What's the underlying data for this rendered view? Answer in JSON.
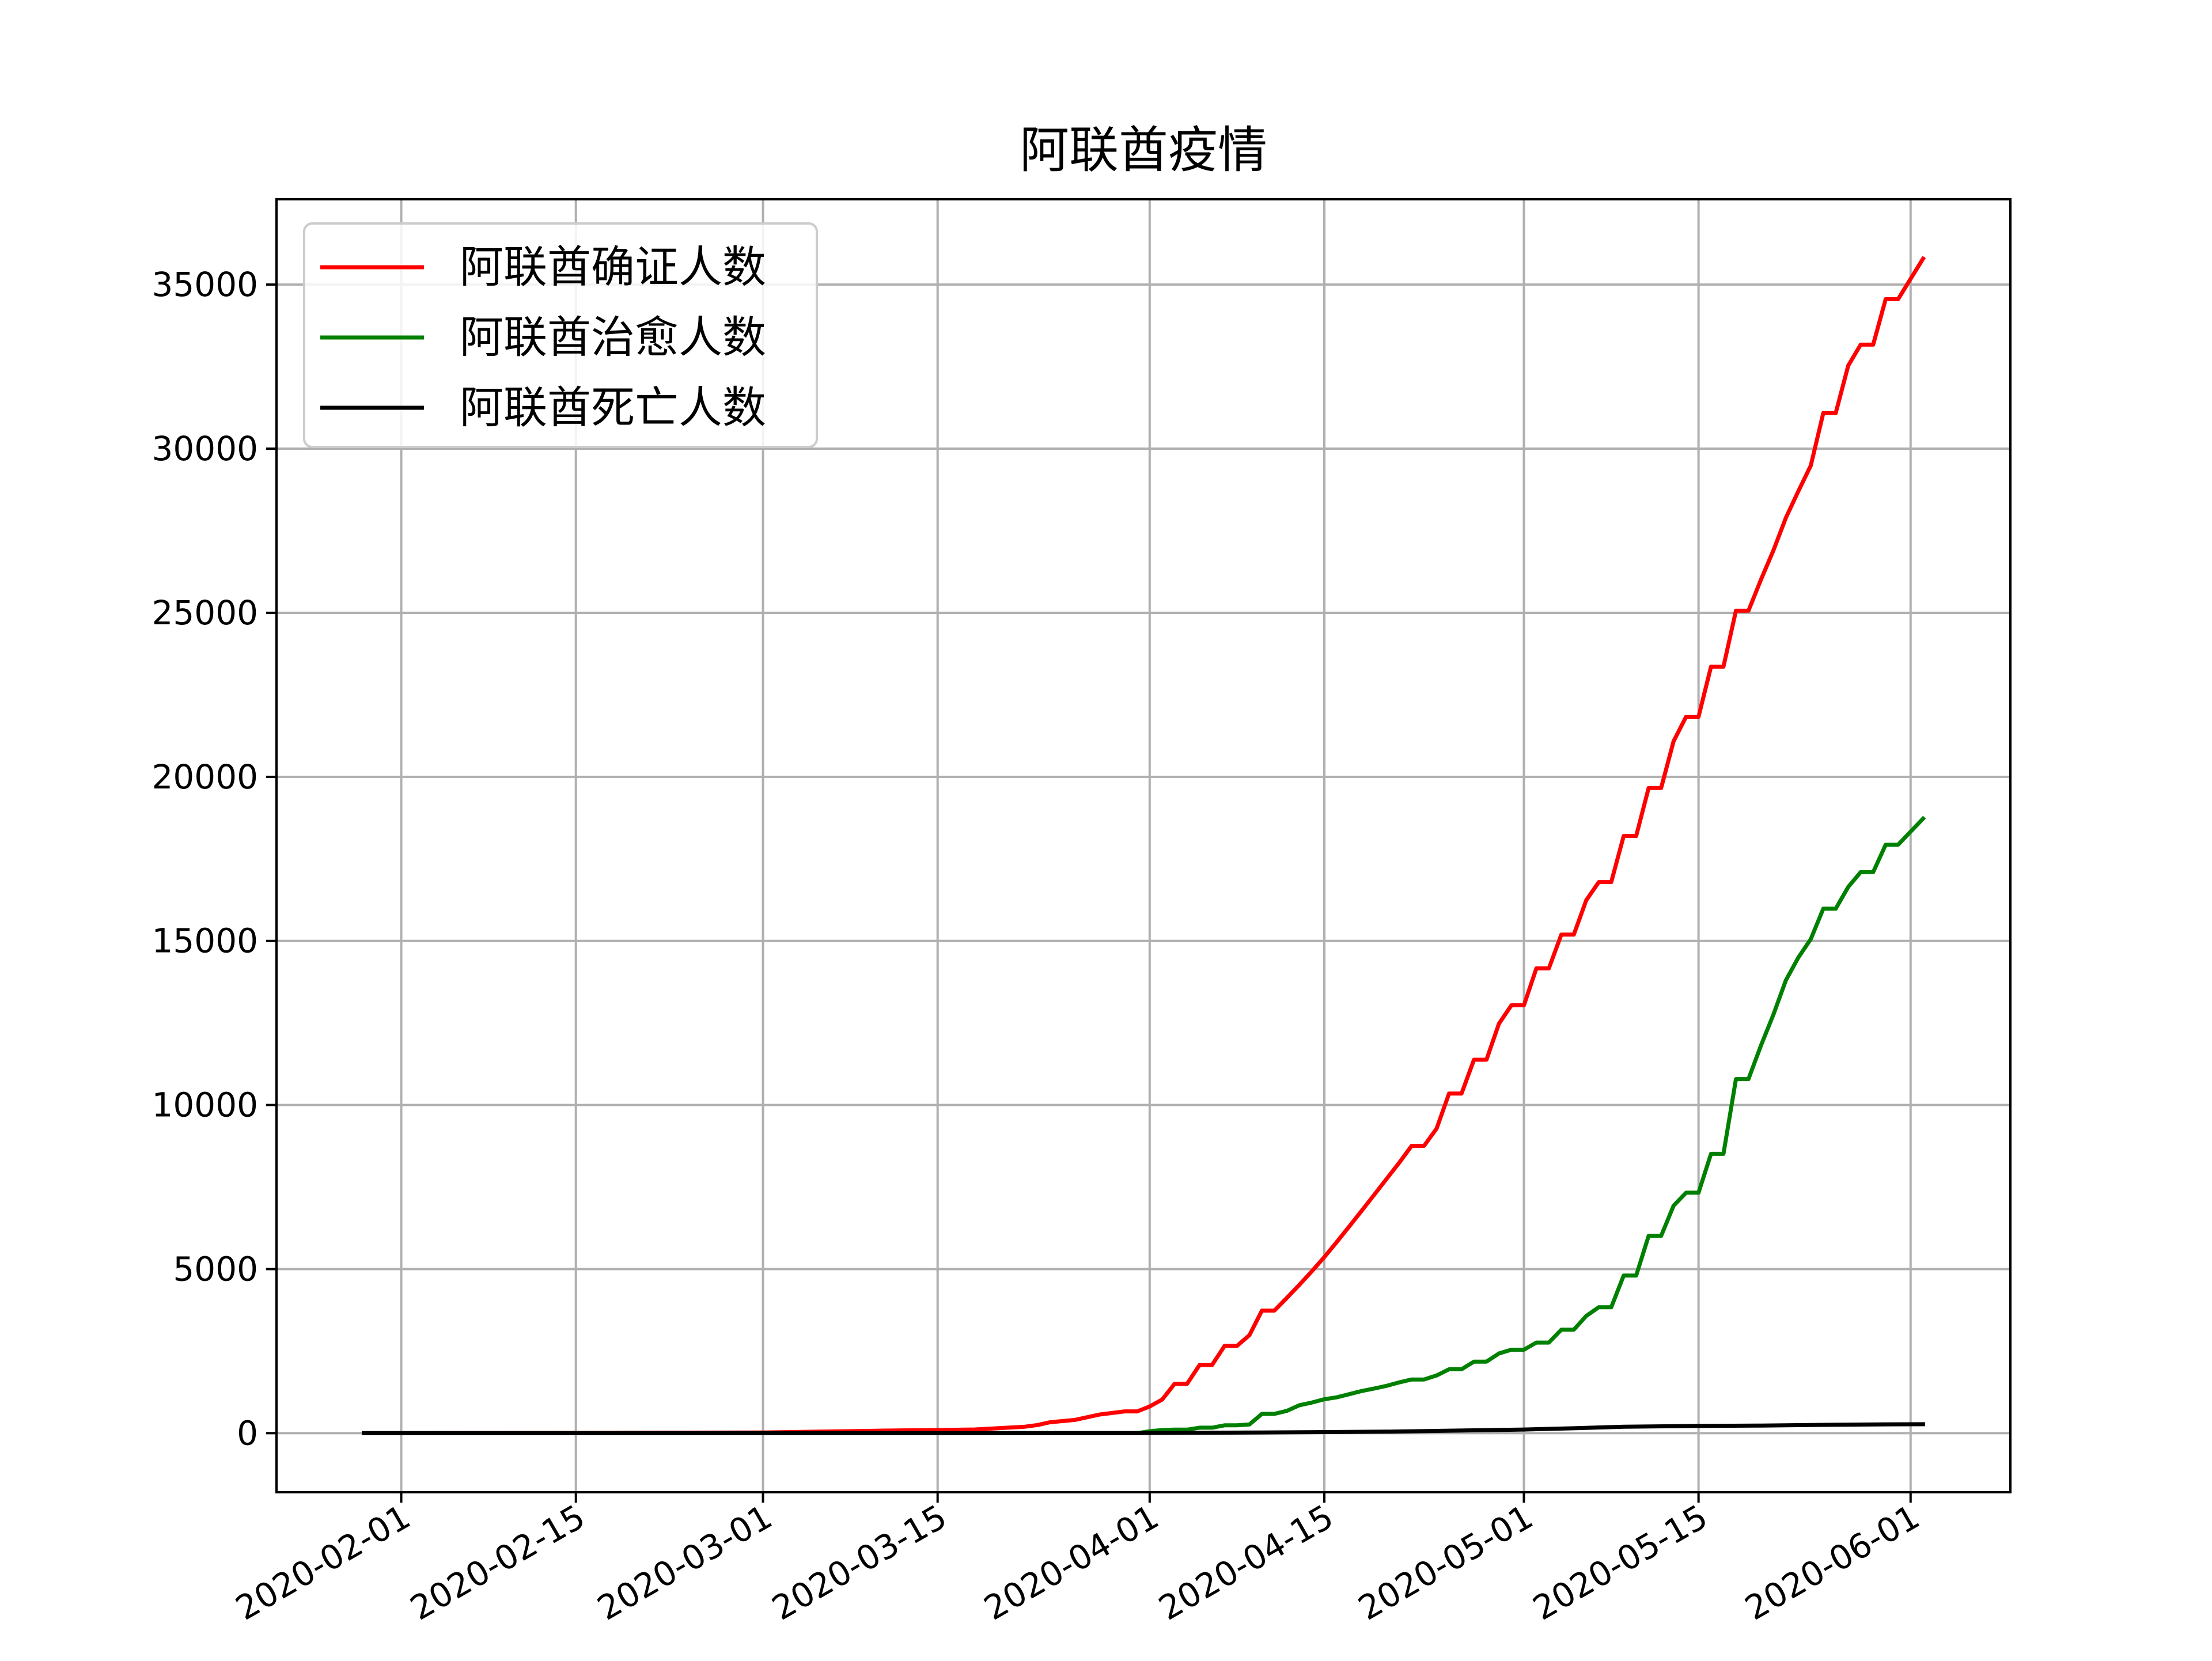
{
  "chart_data": {
    "type": "line",
    "title": "阿联酋疫情",
    "xlabel": "",
    "ylabel": "",
    "x_ticks": [
      "2020-02-01",
      "2020-02-15",
      "2020-03-01",
      "2020-03-15",
      "2020-04-01",
      "2020-04-15",
      "2020-05-01",
      "2020-05-15",
      "2020-06-01"
    ],
    "y_ticks": [
      0,
      5000,
      10000,
      15000,
      20000,
      25000,
      30000,
      35000
    ],
    "xlim": [
      "2020-01-22",
      "2020-06-09"
    ],
    "ylim": [
      -1800,
      37600
    ],
    "grid": true,
    "legend_position": "upper-left",
    "series": [
      {
        "name": "阿联酋确证人数",
        "color": "#ff0000",
        "points": [
          [
            "2020-01-29",
            0
          ],
          [
            "2020-02-15",
            8
          ],
          [
            "2020-03-01",
            21
          ],
          [
            "2020-03-10",
            74
          ],
          [
            "2020-03-15",
            98
          ],
          [
            "2020-03-18",
            113
          ],
          [
            "2020-03-22",
            198
          ],
          [
            "2020-03-23",
            248
          ],
          [
            "2020-03-24",
            333
          ],
          [
            "2020-03-26",
            405
          ],
          [
            "2020-03-28",
            570
          ],
          [
            "2020-03-30",
            664
          ],
          [
            "2020-03-31",
            664
          ],
          [
            "2020-04-01",
            814
          ],
          [
            "2020-04-02",
            1024
          ],
          [
            "2020-04-03",
            1505
          ],
          [
            "2020-04-04",
            1505
          ],
          [
            "2020-04-05",
            2076
          ],
          [
            "2020-04-06",
            2076
          ],
          [
            "2020-04-07",
            2659
          ],
          [
            "2020-04-08",
            2659
          ],
          [
            "2020-04-09",
            2990
          ],
          [
            "2020-04-10",
            3736
          ],
          [
            "2020-04-11",
            3736
          ],
          [
            "2020-04-12",
            4123
          ],
          [
            "2020-04-13",
            4521
          ],
          [
            "2020-04-14",
            4933
          ],
          [
            "2020-04-15",
            5365
          ],
          [
            "2020-04-16",
            5825
          ],
          [
            "2020-04-17",
            6302
          ],
          [
            "2020-04-18",
            6781
          ],
          [
            "2020-04-19",
            7265
          ],
          [
            "2020-04-20",
            7755
          ],
          [
            "2020-04-21",
            8238
          ],
          [
            "2020-04-22",
            8756
          ],
          [
            "2020-04-23",
            8756
          ],
          [
            "2020-04-24",
            9281
          ],
          [
            "2020-04-25",
            10349
          ],
          [
            "2020-04-26",
            10349
          ],
          [
            "2020-04-27",
            11380
          ],
          [
            "2020-04-28",
            11380
          ],
          [
            "2020-04-29",
            12481
          ],
          [
            "2020-04-30",
            13038
          ],
          [
            "2020-05-01",
            13038
          ],
          [
            "2020-05-02",
            14163
          ],
          [
            "2020-05-03",
            14163
          ],
          [
            "2020-05-04",
            15192
          ],
          [
            "2020-05-05",
            15192
          ],
          [
            "2020-05-06",
            16240
          ],
          [
            "2020-05-07",
            16793
          ],
          [
            "2020-05-08",
            16793
          ],
          [
            "2020-05-09",
            18198
          ],
          [
            "2020-05-10",
            18198
          ],
          [
            "2020-05-11",
            19661
          ],
          [
            "2020-05-12",
            19661
          ],
          [
            "2020-05-13",
            21084
          ],
          [
            "2020-05-14",
            21831
          ],
          [
            "2020-05-15",
            21831
          ],
          [
            "2020-05-16",
            23358
          ],
          [
            "2020-05-17",
            23358
          ],
          [
            "2020-05-18",
            25063
          ],
          [
            "2020-05-19",
            25063
          ],
          [
            "2020-05-20",
            26004
          ],
          [
            "2020-05-21",
            26898
          ],
          [
            "2020-05-22",
            27892
          ],
          [
            "2020-05-23",
            28704
          ],
          [
            "2020-05-24",
            29485
          ],
          [
            "2020-05-25",
            31086
          ],
          [
            "2020-05-26",
            31086
          ],
          [
            "2020-05-27",
            32532
          ],
          [
            "2020-05-28",
            33170
          ],
          [
            "2020-05-29",
            33170
          ],
          [
            "2020-05-30",
            34557
          ],
          [
            "2020-05-31",
            34557
          ],
          [
            "2020-06-02",
            35788
          ]
        ]
      },
      {
        "name": "阿联酋治愈人数",
        "color": "#008000",
        "points": [
          [
            "2020-01-29",
            0
          ],
          [
            "2020-03-31",
            0
          ],
          [
            "2020-04-01",
            58
          ],
          [
            "2020-04-02",
            96
          ],
          [
            "2020-04-03",
            108
          ],
          [
            "2020-04-04",
            108
          ],
          [
            "2020-04-05",
            167
          ],
          [
            "2020-04-06",
            167
          ],
          [
            "2020-04-07",
            239
          ],
          [
            "2020-04-08",
            239
          ],
          [
            "2020-04-09",
            268
          ],
          [
            "2020-04-10",
            588
          ],
          [
            "2020-04-11",
            588
          ],
          [
            "2020-04-12",
            680
          ],
          [
            "2020-04-13",
            852
          ],
          [
            "2020-04-14",
            933
          ],
          [
            "2020-04-15",
            1034
          ],
          [
            "2020-04-16",
            1093
          ],
          [
            "2020-04-17",
            1188
          ],
          [
            "2020-04-18",
            1286
          ],
          [
            "2020-04-19",
            1360
          ],
          [
            "2020-04-20",
            1443
          ],
          [
            "2020-04-21",
            1546
          ],
          [
            "2020-04-22",
            1637
          ],
          [
            "2020-04-23",
            1637
          ],
          [
            "2020-04-24",
            1760
          ],
          [
            "2020-04-25",
            1947
          ],
          [
            "2020-04-26",
            1947
          ],
          [
            "2020-04-27",
            2181
          ],
          [
            "2020-04-28",
            2181
          ],
          [
            "2020-04-29",
            2429
          ],
          [
            "2020-04-30",
            2543
          ],
          [
            "2020-05-01",
            2543
          ],
          [
            "2020-05-02",
            2762
          ],
          [
            "2020-05-03",
            2762
          ],
          [
            "2020-05-04",
            3153
          ],
          [
            "2020-05-05",
            3153
          ],
          [
            "2020-05-06",
            3572
          ],
          [
            "2020-05-07",
            3837
          ],
          [
            "2020-05-08",
            3837
          ],
          [
            "2020-05-09",
            4804
          ],
          [
            "2020-05-10",
            4804
          ],
          [
            "2020-05-11",
            6012
          ],
          [
            "2020-05-12",
            6012
          ],
          [
            "2020-05-13",
            6931
          ],
          [
            "2020-05-14",
            7328
          ],
          [
            "2020-05-15",
            7328
          ],
          [
            "2020-05-16",
            8512
          ],
          [
            "2020-05-17",
            8512
          ],
          [
            "2020-05-18",
            10791
          ],
          [
            "2020-05-19",
            10791
          ],
          [
            "2020-05-20",
            11809
          ],
          [
            "2020-05-21",
            12755
          ],
          [
            "2020-05-22",
            13798
          ],
          [
            "2020-05-23",
            14495
          ],
          [
            "2020-05-24",
            15056
          ],
          [
            "2020-05-25",
            15982
          ],
          [
            "2020-05-26",
            15982
          ],
          [
            "2020-05-27",
            16645
          ],
          [
            "2020-05-28",
            17097
          ],
          [
            "2020-05-29",
            17097
          ],
          [
            "2020-05-30",
            17932
          ],
          [
            "2020-05-31",
            17932
          ],
          [
            "2020-06-02",
            18726
          ]
        ]
      },
      {
        "name": "阿联酋死亡人数",
        "color": "#000000",
        "points": [
          [
            "2020-01-29",
            0
          ],
          [
            "2020-03-31",
            5
          ],
          [
            "2020-04-10",
            20
          ],
          [
            "2020-04-20",
            46
          ],
          [
            "2020-04-25",
            76
          ],
          [
            "2020-05-01",
            111
          ],
          [
            "2020-05-05",
            150
          ],
          [
            "2020-05-09",
            198
          ],
          [
            "2020-05-15",
            220
          ],
          [
            "2020-05-20",
            233
          ],
          [
            "2020-05-25",
            253
          ],
          [
            "2020-05-30",
            269
          ],
          [
            "2020-06-02",
            273
          ]
        ]
      }
    ]
  }
}
